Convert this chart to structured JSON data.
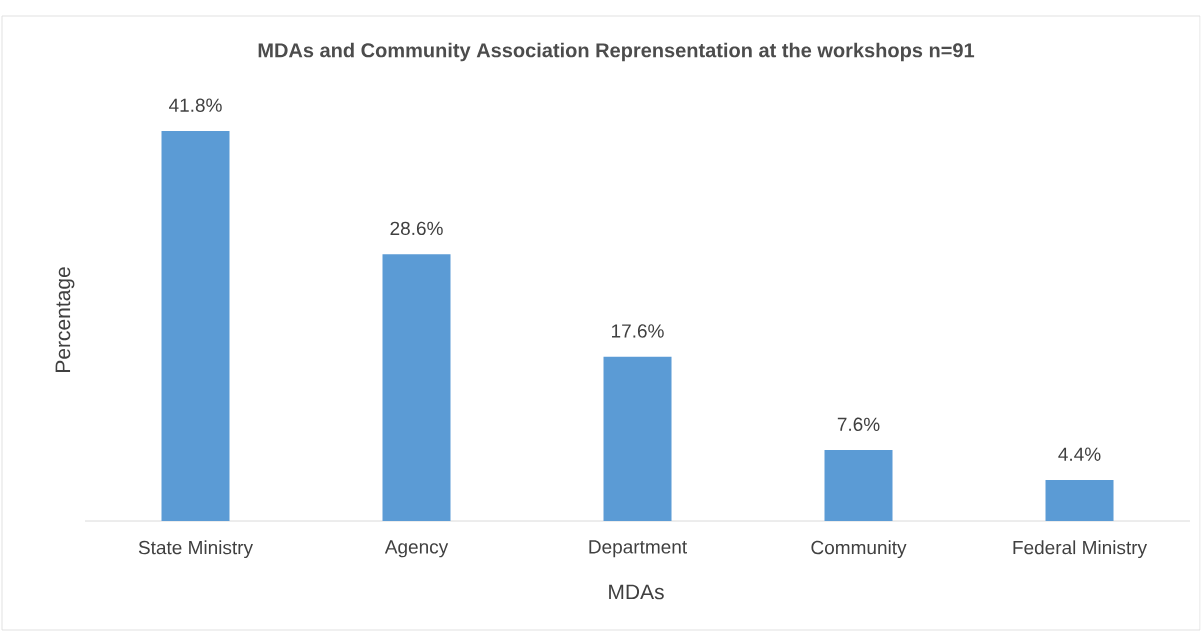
{
  "chart_data": {
    "type": "bar",
    "title": "MDAs and Community Association Reprensentation at the workshops n=91",
    "xlabel": "MDAs",
    "ylabel": "Percentage",
    "categories": [
      "State Ministry",
      "Agency",
      "Department",
      "Community",
      "Federal Ministry"
    ],
    "values": [
      41.8,
      28.6,
      17.6,
      7.6,
      4.4
    ],
    "value_labels": [
      "41.8%",
      "28.6%",
      "17.6%",
      "7.6%",
      "4.4%"
    ],
    "color": "#5b9bd5"
  }
}
